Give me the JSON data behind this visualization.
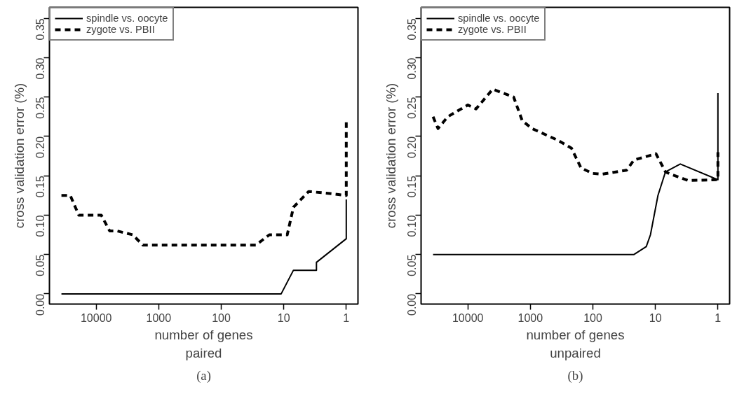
{
  "chart_data": [
    {
      "type": "line",
      "xlabel": "number of genes",
      "ylabel": "cross validation error (%)",
      "annotations": [
        "paired",
        "(a)"
      ],
      "log": "x",
      "xlim": [
        56000,
        0.65
      ],
      "xticks": [
        10000,
        1000,
        100,
        10,
        1
      ],
      "ylim": [
        -0.013,
        0.364
      ],
      "yticks": [
        {
          "value": 0,
          "label": "0.00"
        },
        0.05,
        {
          "value": 0.1,
          "label": "0.10"
        },
        0.15,
        {
          "value": 0.2,
          "label": "0.20"
        },
        0.25,
        {
          "value": 0.3,
          "label": "0.30"
        },
        0.35
      ],
      "legend": "top left",
      "grid": false,
      "series": [
        {
          "name": "spindle vs. oocyte",
          "color": "#000000",
          "line_style": "solid",
          "x": [
            36000,
            11,
            7,
            3,
            3,
            1,
            1
          ],
          "values": [
            0,
            0,
            0.03,
            0.03,
            0.04,
            0.07,
            0.12
          ]
        },
        {
          "name": "zygote vs. PBII",
          "color": "#000000",
          "line_style": "dashed",
          "x": [
            36000,
            26000,
            19000,
            8300,
            6100,
            4700,
            2600,
            1800,
            28,
            17,
            8.8,
            7,
            4,
            2.1,
            1,
            1
          ],
          "values": [
            0.125,
            0.125,
            0.1,
            0.1,
            0.08,
            0.08,
            0.075,
            0.062,
            0.062,
            0.075,
            0.075,
            0.11,
            0.13,
            0.128,
            0.125,
            0.22
          ]
        }
      ]
    },
    {
      "type": "line",
      "xlabel": "number of genes",
      "ylabel": "cross validation error (%)",
      "annotations": [
        "unpaired",
        "(b)"
      ],
      "log": "x",
      "xlim": [
        56000,
        0.65
      ],
      "xticks": [
        10000,
        1000,
        100,
        10,
        1
      ],
      "ylim": [
        -0.013,
        0.364
      ],
      "yticks": [
        {
          "value": 0,
          "label": "0.00"
        },
        0.05,
        {
          "value": 0.1,
          "label": "0.10"
        },
        0.15,
        {
          "value": 0.2,
          "label": "0.20"
        },
        0.25,
        {
          "value": 0.3,
          "label": "0.30"
        },
        0.35
      ],
      "legend": "top left",
      "grid": false,
      "series": [
        {
          "name": "spindle vs. oocyte",
          "color": "#000000",
          "line_style": "solid",
          "x": [
            36000,
            22,
            14,
            12,
            9.1,
            6.9,
            4,
            1,
            1
          ],
          "values": [
            0.05,
            0.05,
            0.06,
            0.075,
            0.125,
            0.155,
            0.165,
            0.145,
            0.255
          ]
        },
        {
          "name": "zygote vs. PBII",
          "color": "#000000",
          "line_style": "dashed",
          "x": [
            36000,
            30000,
            21000,
            10000,
            7400,
            4000,
            1850,
            1350,
            940,
            360,
            220,
            155,
            102,
            71,
            29,
            22,
            9.8,
            6.9,
            5.7,
            3,
            1,
            1
          ],
          "values": [
            0.225,
            0.21,
            0.225,
            0.24,
            0.235,
            0.26,
            0.25,
            0.22,
            0.21,
            0.195,
            0.185,
            0.16,
            0.153,
            0.152,
            0.157,
            0.17,
            0.178,
            0.155,
            0.152,
            0.144,
            0.145,
            0.18
          ]
        }
      ]
    }
  ]
}
